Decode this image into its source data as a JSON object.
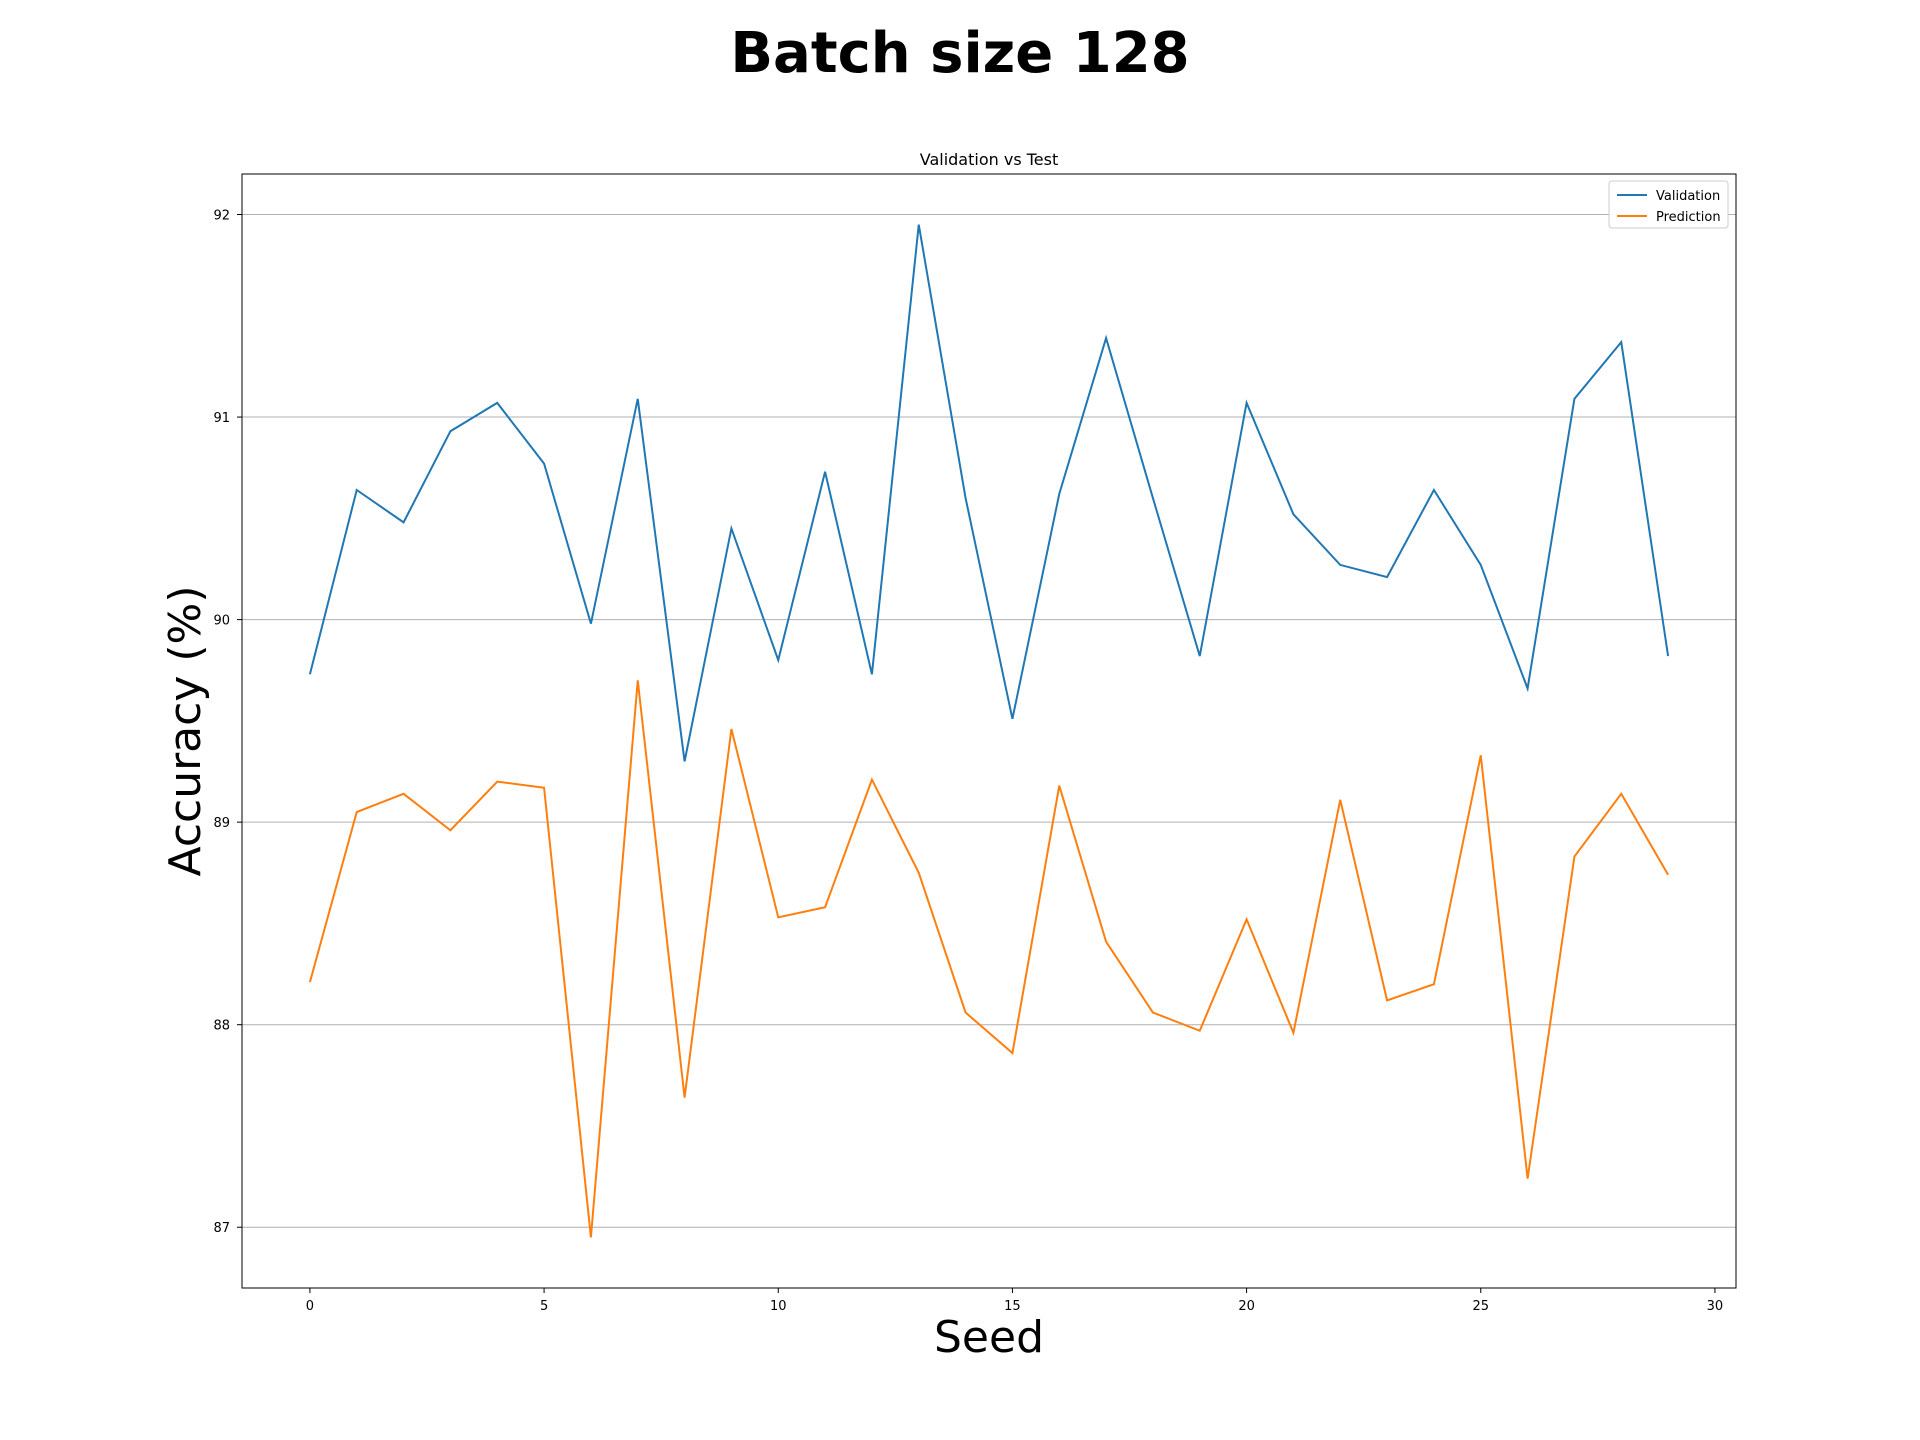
{
  "chart_data": {
    "type": "line",
    "suptitle": "Batch size 128",
    "title": "Validation vs Test",
    "xlabel": "Seed",
    "ylabel": "Accuracy (%)",
    "xlim": [
      -1.45,
      30.45
    ],
    "ylim": [
      86.7,
      92.2
    ],
    "xticks": [
      0,
      5,
      10,
      15,
      20,
      25,
      30
    ],
    "yticks": [
      87,
      88,
      89,
      90,
      91,
      92
    ],
    "grid": "y-axis",
    "legend": "top-right",
    "x": [
      0,
      1,
      2,
      3,
      4,
      5,
      6,
      7,
      8,
      9,
      10,
      11,
      12,
      13,
      14,
      15,
      16,
      17,
      18,
      19,
      20,
      21,
      22,
      23,
      24,
      25,
      26,
      27,
      28,
      29
    ],
    "series": [
      {
        "name": "Validation",
        "color": "#1f77b4",
        "values": [
          89.73,
          90.64,
          90.48,
          90.93,
          91.07,
          90.77,
          89.98,
          91.09,
          89.3,
          90.45,
          89.8,
          90.73,
          89.73,
          91.95,
          90.6,
          89.51,
          90.62,
          91.39,
          90.6,
          89.82,
          91.07,
          90.52,
          90.27,
          90.21,
          90.64,
          90.27,
          89.66,
          91.09,
          91.37,
          89.82
        ]
      },
      {
        "name": "Prediction",
        "color": "#ff7f0e",
        "values": [
          88.21,
          89.05,
          89.14,
          88.96,
          89.2,
          89.17,
          86.95,
          89.7,
          87.64,
          89.46,
          88.53,
          88.58,
          89.21,
          88.75,
          88.06,
          87.86,
          89.18,
          88.41,
          88.06,
          87.97,
          88.52,
          87.96,
          89.11,
          88.12,
          88.2,
          89.33,
          87.24,
          88.83,
          89.14,
          88.74
        ]
      }
    ]
  }
}
